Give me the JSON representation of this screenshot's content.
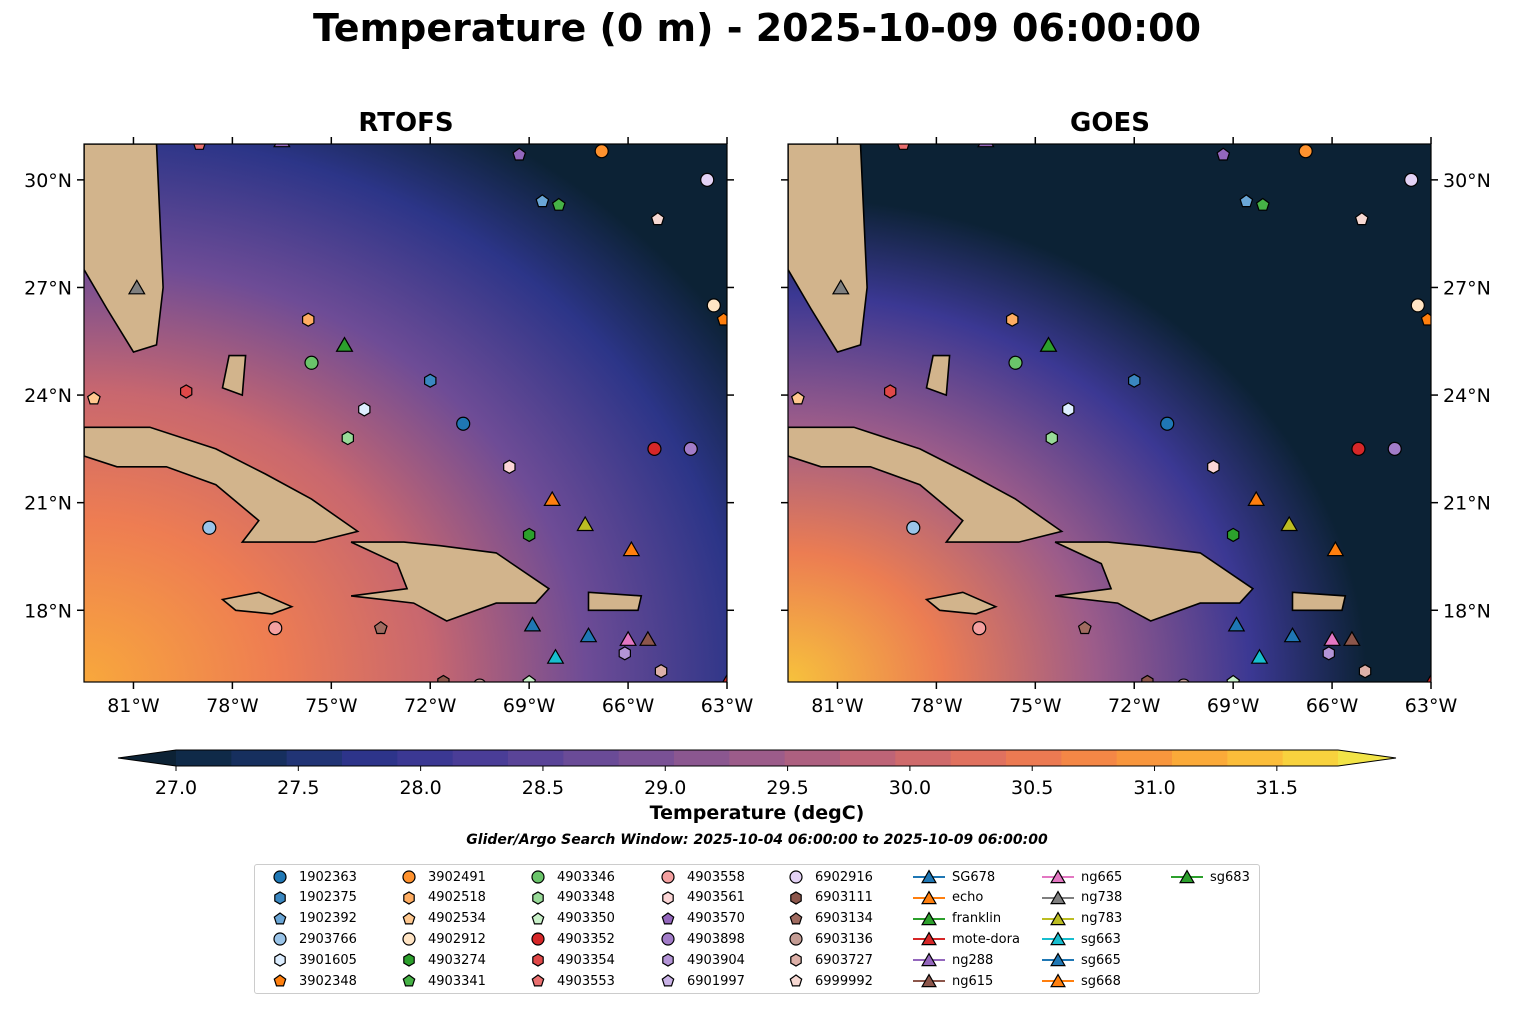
{
  "figure_title": "Temperature (0 m) - 2025-10-09 06:00:00",
  "panels": [
    {
      "title": "RTOFS"
    },
    {
      "title": "GOES"
    }
  ],
  "search_window": "Glider/Argo Search Window: 2025-10-04 06:00:00 to 2025-10-09 06:00:00",
  "chart_data": {
    "type": "heatmap",
    "x_ticks": [
      {
        "value": -81,
        "label": "81°W"
      },
      {
        "value": -78,
        "label": "78°W"
      },
      {
        "value": -75,
        "label": "75°W"
      },
      {
        "value": -72,
        "label": "72°W"
      },
      {
        "value": -69,
        "label": "69°W"
      },
      {
        "value": -66,
        "label": "66°W"
      },
      {
        "value": -63,
        "label": "63°W"
      }
    ],
    "y_ticks": [
      {
        "value": 30,
        "label": "30°N"
      },
      {
        "value": 27,
        "label": "27°N"
      },
      {
        "value": 24,
        "label": "24°N"
      },
      {
        "value": 21,
        "label": "21°N"
      },
      {
        "value": 18,
        "label": "18°N"
      }
    ],
    "xlim": [
      -82.5,
      -63
    ],
    "ylim": [
      16,
      31
    ],
    "colorbar": {
      "label": "Temperature (degC)",
      "range": [
        27.0,
        31.75
      ],
      "ticks": [
        {
          "value": 27.0,
          "label": "27.0"
        },
        {
          "value": 27.5,
          "label": "27.5"
        },
        {
          "value": 28.0,
          "label": "28.0"
        },
        {
          "value": 28.5,
          "label": "28.5"
        },
        {
          "value": 29.0,
          "label": "29.0"
        },
        {
          "value": 29.5,
          "label": "29.5"
        },
        {
          "value": 30.0,
          "label": "30.0"
        },
        {
          "value": 30.5,
          "label": "30.5"
        },
        {
          "value": 31.0,
          "label": "31.0"
        },
        {
          "value": 31.5,
          "label": "31.5"
        }
      ],
      "colors": [
        "#0c2235",
        "#0f2a48",
        "#162f5e",
        "#213475",
        "#2d348a",
        "#3b3893",
        "#4a3d97",
        "#5a4498",
        "#6a4b97",
        "#7a5195",
        "#8b5790",
        "#9c5c8a",
        "#ad6080",
        "#be6477",
        "#cf6a6b",
        "#e0715f",
        "#ec7a52",
        "#f48746",
        "#f8963d",
        "#fbaa39",
        "#fbbd3a",
        "#f8d23e",
        "#f2e447"
      ],
      "extend": "both"
    },
    "markers": [
      {
        "id": "1902363",
        "shape": "circle",
        "color": "#1f77b4",
        "lon": -71.0,
        "lat": 23.2
      },
      {
        "id": "1902375",
        "shape": "hexagon",
        "color": "#3a87c0",
        "lon": -72.0,
        "lat": 24.4
      },
      {
        "id": "1902392",
        "shape": "pentagon",
        "color": "#6aa6d6",
        "lon": -68.6,
        "lat": 29.4
      },
      {
        "id": "2903766",
        "shape": "circle",
        "color": "#9ac4e8",
        "lon": -78.7,
        "lat": 20.3
      },
      {
        "id": "3901605",
        "shape": "hexagon",
        "color": "#ddeeff",
        "lon": -74.0,
        "lat": 23.6
      },
      {
        "id": "3902348",
        "shape": "pentagon",
        "color": "#ff7f0e",
        "lon": -63.1,
        "lat": 26.1
      },
      {
        "id": "3902491",
        "shape": "circle",
        "color": "#ff922e",
        "lon": -66.8,
        "lat": 30.8
      },
      {
        "id": "4902518",
        "shape": "hexagon",
        "color": "#ffad62",
        "lon": -75.7,
        "lat": 26.1
      },
      {
        "id": "4902534",
        "shape": "pentagon",
        "color": "#ffc88f",
        "lon": -82.2,
        "lat": 23.9
      },
      {
        "id": "4902912",
        "shape": "circle",
        "color": "#ffe4c4",
        "lon": -63.4,
        "lat": 26.5
      },
      {
        "id": "4903274",
        "shape": "hexagon",
        "color": "#2ca02c",
        "lon": -69.0,
        "lat": 20.1
      },
      {
        "id": "4903341",
        "shape": "pentagon",
        "color": "#46b246",
        "lon": -68.1,
        "lat": 29.3
      },
      {
        "id": "4903346",
        "shape": "circle",
        "color": "#6ac46a",
        "lon": -75.6,
        "lat": 24.9
      },
      {
        "id": "4903348",
        "shape": "hexagon",
        "color": "#98da98",
        "lon": -74.5,
        "lat": 22.8
      },
      {
        "id": "4903350",
        "shape": "pentagon",
        "color": "#c8f0c8",
        "lon": -69.0,
        "lat": 16.0
      },
      {
        "id": "4903352",
        "shape": "circle",
        "color": "#d62728",
        "lon": -65.2,
        "lat": 22.5
      },
      {
        "id": "4903354",
        "shape": "hexagon",
        "color": "#e04848",
        "lon": -79.4,
        "lat": 24.1
      },
      {
        "id": "4903553",
        "shape": "pentagon",
        "color": "#ea7070",
        "lon": -79.0,
        "lat": 31.0
      },
      {
        "id": "4903558",
        "shape": "circle",
        "color": "#f4a0a0",
        "lon": -76.7,
        "lat": 17.5
      },
      {
        "id": "4903561",
        "shape": "hexagon",
        "color": "#fcd6d6",
        "lon": -69.6,
        "lat": 22.0
      },
      {
        "id": "4903570",
        "shape": "pentagon",
        "color": "#9467bd",
        "lon": -69.3,
        "lat": 30.7
      },
      {
        "id": "4903898",
        "shape": "circle",
        "color": "#a27cc8",
        "lon": -64.1,
        "lat": 22.5
      },
      {
        "id": "4903904",
        "shape": "hexagon",
        "color": "#b394d6",
        "lon": -66.1,
        "lat": 16.8
      },
      {
        "id": "6901997",
        "shape": "pentagon",
        "color": "#c9b2e6",
        "lon": -76.5,
        "lat": 31.1
      },
      {
        "id": "6902916",
        "shape": "circle",
        "color": "#e3d2f5",
        "lon": -63.6,
        "lat": 30.0
      },
      {
        "id": "6903111",
        "shape": "hexagon",
        "color": "#8c564b",
        "lon": -71.6,
        "lat": 16.0
      },
      {
        "id": "6903134",
        "shape": "pentagon",
        "color": "#a06b60",
        "lon": -73.5,
        "lat": 17.5
      },
      {
        "id": "6903136",
        "shape": "circle",
        "color": "#c49c94",
        "lon": -70.5,
        "lat": 15.9
      },
      {
        "id": "6903727",
        "shape": "hexagon",
        "color": "#ddb0a8",
        "lon": -65.0,
        "lat": 16.3
      },
      {
        "id": "6999992",
        "shape": "pentagon",
        "color": "#f6d8d2",
        "lon": -65.1,
        "lat": 28.9
      },
      {
        "id": "SG678",
        "shape": "triangle",
        "color": "#1f77b4",
        "lon": -68.9,
        "lat": 17.6
      },
      {
        "id": "echo",
        "shape": "triangle",
        "color": "#ff7f0e",
        "lon": -68.3,
        "lat": 21.1
      },
      {
        "id": "franklin",
        "shape": "triangle",
        "color": "#2ca02c",
        "lon": -74.6,
        "lat": 25.4
      },
      {
        "id": "mote-dora",
        "shape": "triangle",
        "color": "#d62728",
        "lon": -63.0,
        "lat": 16.0
      },
      {
        "id": "ng288",
        "shape": "triangle",
        "color": "#9467bd",
        "lon": -76.5,
        "lat": 31.1
      },
      {
        "id": "ng615",
        "shape": "triangle",
        "color": "#8c564b",
        "lon": -65.4,
        "lat": 17.2
      },
      {
        "id": "ng665",
        "shape": "triangle",
        "color": "#e377c2",
        "lon": -66.0,
        "lat": 17.2
      },
      {
        "id": "ng738",
        "shape": "triangle",
        "color": "#7f7f7f",
        "lon": -80.9,
        "lat": 27.0
      },
      {
        "id": "ng783",
        "shape": "triangle",
        "color": "#bcbd22",
        "lon": -67.3,
        "lat": 20.4
      },
      {
        "id": "sg663",
        "shape": "triangle",
        "color": "#17becf",
        "lon": -68.2,
        "lat": 16.7
      },
      {
        "id": "sg665",
        "shape": "triangle",
        "color": "#1f77b4",
        "lon": -67.2,
        "lat": 17.3
      },
      {
        "id": "sg668",
        "shape": "triangle",
        "color": "#ff7f0e",
        "lon": -65.9,
        "lat": 19.7
      },
      {
        "id": "sg683",
        "shape": "triangle",
        "color": "#2ca02c",
        "lon": -74.6,
        "lat": 25.4
      }
    ]
  }
}
